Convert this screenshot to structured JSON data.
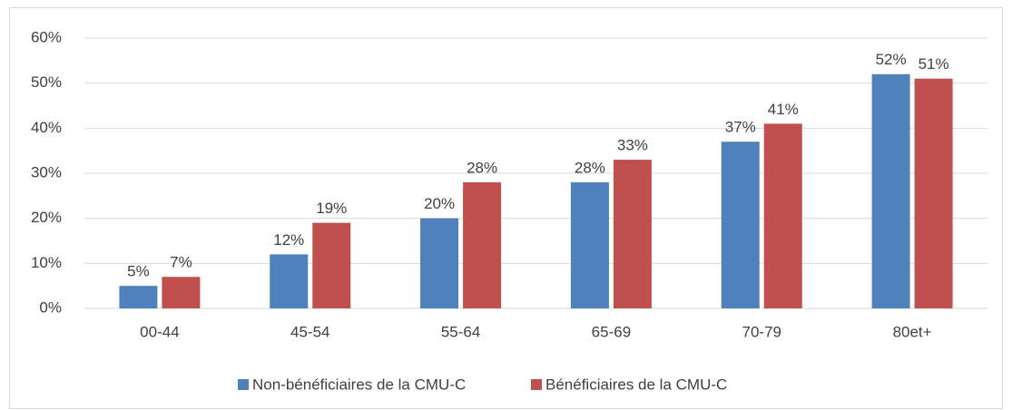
{
  "chart_data": {
    "type": "bar",
    "categories": [
      "00-44",
      "45-54",
      "55-64",
      "65-69",
      "70-79",
      "80et+"
    ],
    "series": [
      {
        "name": "Non-bénéficiaires de la CMU-C",
        "color": "#4f81bd",
        "values": [
          5,
          12,
          20,
          28,
          37,
          52
        ],
        "value_labels": [
          "5%",
          "12%",
          "20%",
          "28%",
          "37%",
          "52%"
        ]
      },
      {
        "name": "Bénéficiaires de la CMU-C",
        "color": "#c0504d",
        "values": [
          7,
          19,
          28,
          33,
          41,
          51
        ],
        "value_labels": [
          "7%",
          "19%",
          "28%",
          "33%",
          "41%",
          "51%"
        ]
      }
    ],
    "ylim": [
      0,
      60
    ],
    "yticks": [
      {
        "value": 0,
        "label": "0%"
      },
      {
        "value": 10,
        "label": "10%"
      },
      {
        "value": 20,
        "label": "20%"
      },
      {
        "value": 30,
        "label": "30%"
      },
      {
        "value": 40,
        "label": "40%"
      },
      {
        "value": 50,
        "label": "50%"
      },
      {
        "value": 60,
        "label": "60%"
      }
    ],
    "grid": true,
    "legend": "bottom"
  }
}
